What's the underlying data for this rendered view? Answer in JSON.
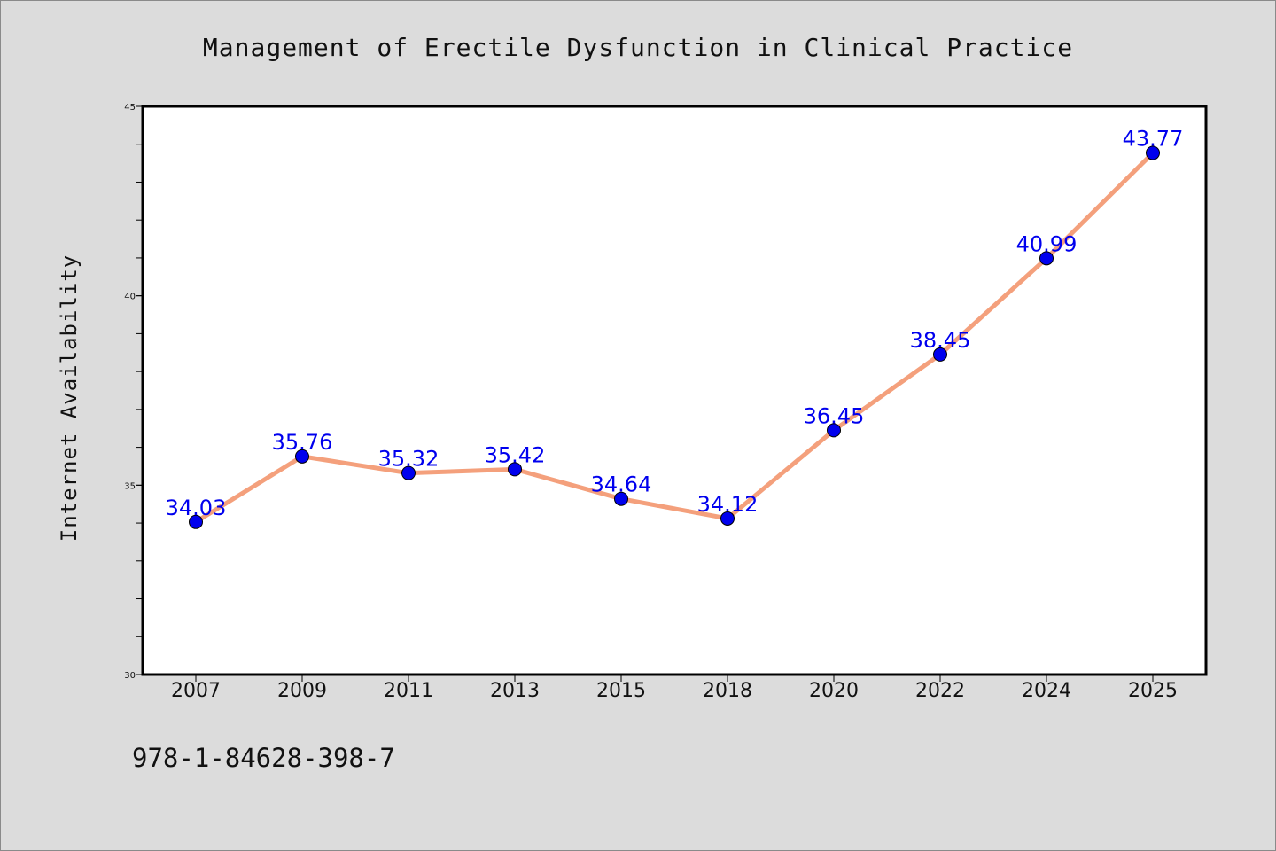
{
  "chart_data": {
    "type": "line",
    "title": "Management of Erectile Dysfunction in Clinical Practice",
    "xlabel": "",
    "ylabel": "Internet Availability",
    "categories": [
      "2007",
      "2009",
      "2011",
      "2013",
      "2015",
      "2018",
      "2020",
      "2022",
      "2024",
      "2025"
    ],
    "series": [
      {
        "values": [
          34.03,
          35.76,
          35.32,
          35.42,
          34.64,
          34.12,
          36.45,
          38.45,
          40.99,
          43.77
        ],
        "labels": [
          "34.03",
          "35.76",
          "35.32",
          "35.42",
          "34.64",
          "34.12",
          "36.45",
          "38.45",
          "40.99",
          "43.77"
        ]
      }
    ],
    "ylim": [
      30,
      45
    ],
    "yticks": [
      "30",
      "35",
      "40",
      "45"
    ],
    "ytick_values": [
      30,
      35,
      40,
      45
    ],
    "grid": false,
    "legend": "none",
    "colors": {
      "line": "#f4a07c",
      "marker": "#0000ee",
      "data_label": "#0000ee",
      "plot_bg": "#ffffff",
      "page_bg": "#dcdcdc"
    }
  },
  "footer": {
    "isbn": "978-1-84628-398-7"
  }
}
